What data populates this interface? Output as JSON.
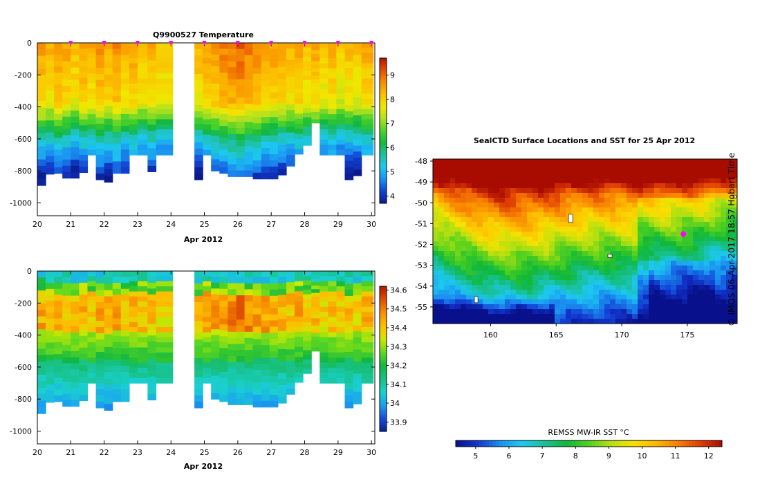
{
  "colors": {
    "temperature_scale": [
      "#0a1a8c",
      "#1240d0",
      "#1a8ef0",
      "#1cc8f0",
      "#20c0a0",
      "#12b840",
      "#4cd22a",
      "#b0e020",
      "#f0e800",
      "#fcc000",
      "#f89000",
      "#e85000",
      "#b81400"
    ],
    "salinity_scale": [
      "#08208c",
      "#1a4ad8",
      "#1aa0f0",
      "#1ad0d0",
      "#18c080",
      "#12b840",
      "#60d820",
      "#d0e800",
      "#fcc000",
      "#f89000",
      "#e05000",
      "#b81400"
    ],
    "sst_scale": [
      "#08108c",
      "#1238d0",
      "#1a90f0",
      "#1cc8f0",
      "#18c098",
      "#10b838",
      "#50d020",
      "#b8e010",
      "#f8e000",
      "#fcb800",
      "#f88000",
      "#e04000",
      "#a80c00"
    ],
    "marker": "#ff00ff",
    "nodata": "#ffffff"
  },
  "chart_data": [
    {
      "type": "heatmap",
      "title": "Q9900527  Temperature",
      "xlabel": "Apr 2012",
      "ylabel": "",
      "x_range": [
        20,
        30.1
      ],
      "y_range": [
        -1080,
        0
      ],
      "x_ticks": [
        20,
        21,
        22,
        23,
        24,
        25,
        26,
        27,
        28,
        29,
        30
      ],
      "y_ticks": [
        0,
        -200,
        -400,
        -600,
        -800,
        -1000
      ],
      "colorbar": {
        "range": [
          3.7,
          9.7
        ],
        "ticks": [
          4,
          5,
          6,
          7,
          8,
          9
        ]
      },
      "profile_markers_x": [
        21,
        22,
        23,
        24,
        25,
        26,
        27,
        28,
        29,
        30
      ],
      "profiles": [
        {
          "x0": 20.0,
          "x1": 20.25,
          "depth": 890,
          "surface": 8.6
        },
        {
          "x0": 20.25,
          "x1": 20.5,
          "depth": 820,
          "surface": 8.4
        },
        {
          "x0": 20.5,
          "x1": 20.75,
          "depth": 815,
          "surface": 8.7
        },
        {
          "x0": 20.75,
          "x1": 21.0,
          "depth": 845,
          "surface": 8.5
        },
        {
          "x0": 21.0,
          "x1": 21.25,
          "depth": 845,
          "surface": 8.3
        },
        {
          "x0": 21.25,
          "x1": 21.5,
          "depth": 810,
          "surface": 8.6
        },
        {
          "x0": 21.5,
          "x1": 21.75,
          "depth": 700,
          "surface": 8.4
        },
        {
          "x0": 21.75,
          "x1": 22.0,
          "depth": 855,
          "surface": 8.7
        },
        {
          "x0": 22.0,
          "x1": 22.25,
          "depth": 870,
          "surface": 8.5
        },
        {
          "x0": 22.25,
          "x1": 22.5,
          "depth": 815,
          "surface": 8.8
        },
        {
          "x0": 22.5,
          "x1": 22.75,
          "depth": 815,
          "surface": 8.4
        },
        {
          "x0": 22.75,
          "x1": 23.0,
          "depth": 700,
          "surface": 8.6
        },
        {
          "x0": 23.0,
          "x1": 23.3,
          "depth": 700,
          "surface": 8.3
        },
        {
          "x0": 23.3,
          "x1": 23.55,
          "depth": 805,
          "surface": 8.5
        },
        {
          "x0": 23.55,
          "x1": 24.05,
          "depth": 700,
          "surface": 8.2
        },
        {
          "x0": 24.7,
          "x1": 24.95,
          "depth": 855,
          "surface": 8.4
        },
        {
          "x0": 24.95,
          "x1": 25.2,
          "depth": 700,
          "surface": 8.6
        },
        {
          "x0": 25.2,
          "x1": 25.45,
          "depth": 800,
          "surface": 8.7
        },
        {
          "x0": 25.45,
          "x1": 25.7,
          "depth": 815,
          "surface": 8.9
        },
        {
          "x0": 25.7,
          "x1": 25.95,
          "depth": 835,
          "surface": 9.0
        },
        {
          "x0": 25.95,
          "x1": 26.2,
          "depth": 835,
          "surface": 9.1
        },
        {
          "x0": 26.2,
          "x1": 26.45,
          "depth": 835,
          "surface": 8.9
        },
        {
          "x0": 26.45,
          "x1": 26.7,
          "depth": 850,
          "surface": 8.8
        },
        {
          "x0": 26.7,
          "x1": 26.95,
          "depth": 850,
          "surface": 8.7
        },
        {
          "x0": 26.95,
          "x1": 27.2,
          "depth": 850,
          "surface": 8.6
        },
        {
          "x0": 27.2,
          "x1": 27.45,
          "depth": 825,
          "surface": 8.5
        },
        {
          "x0": 27.45,
          "x1": 27.7,
          "depth": 770,
          "surface": 8.4
        },
        {
          "x0": 27.7,
          "x1": 27.95,
          "depth": 695,
          "surface": 8.6
        },
        {
          "x0": 27.95,
          "x1": 28.2,
          "depth": 640,
          "surface": 8.3
        },
        {
          "x0": 28.2,
          "x1": 28.45,
          "depth": 500,
          "surface": 8.5
        },
        {
          "x0": 28.45,
          "x1": 28.7,
          "depth": 700,
          "surface": 8.2
        },
        {
          "x0": 28.7,
          "x1": 28.95,
          "depth": 700,
          "surface": 8.4
        },
        {
          "x0": 28.95,
          "x1": 29.2,
          "depth": 700,
          "surface": 8.1
        },
        {
          "x0": 29.2,
          "x1": 29.45,
          "depth": 855,
          "surface": 8.3
        },
        {
          "x0": 29.45,
          "x1": 29.7,
          "depth": 830,
          "surface": 8.2
        },
        {
          "x0": 29.7,
          "x1": 30.05,
          "depth": 700,
          "surface": 8.5
        }
      ]
    },
    {
      "type": "heatmap",
      "title": "",
      "xlabel": "Apr 2012",
      "ylabel": "",
      "x_range": [
        20,
        30.1
      ],
      "y_range": [
        -1080,
        0
      ],
      "x_ticks": [
        20,
        21,
        22,
        23,
        24,
        25,
        26,
        27,
        28,
        29,
        30
      ],
      "y_ticks": [
        0,
        -200,
        -400,
        -600,
        -800,
        -1000
      ],
      "colorbar": {
        "range": [
          33.85,
          34.62
        ],
        "ticks": [
          33.9,
          34,
          34.1,
          34.2,
          34.3,
          34.4,
          34.5,
          34.6
        ]
      },
      "profiles_same_as": "temperature"
    },
    {
      "type": "heatmap",
      "title": "SealCTD Surface Locations and SST for 25 Apr 2012",
      "xlabel": "",
      "ylabel": "",
      "x_range": [
        155.6,
        178.8
      ],
      "y_range": [
        -55.8,
        -47.9
      ],
      "x_ticks": [
        160,
        165,
        170,
        175
      ],
      "y_ticks": [
        -48,
        -49,
        -50,
        -51,
        -52,
        -53,
        -54,
        -55
      ],
      "colorbar": {
        "label": "REMSS MW-IR SST °C",
        "range": [
          4.4,
          12.4
        ],
        "ticks": [
          5,
          6,
          7,
          8,
          9,
          10,
          11,
          12
        ]
      },
      "seal_location": {
        "lon": 174.7,
        "lat": -51.5
      }
    }
  ],
  "credit": "© IMOS 06-Apr-2017 18:57 Hobart Time"
}
